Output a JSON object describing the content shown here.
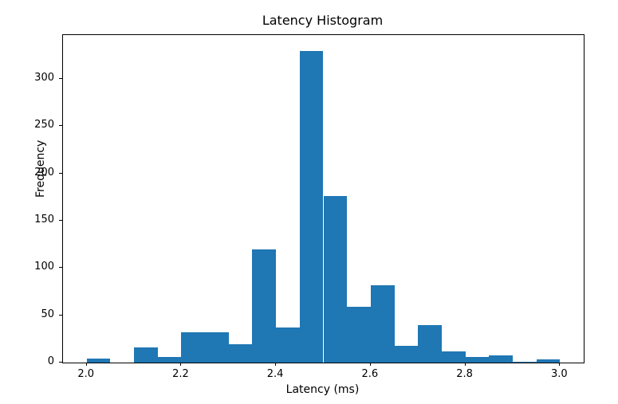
{
  "figure": {
    "background_color": "#ffffff"
  },
  "chart_data": {
    "type": "bar",
    "subtype": "histogram",
    "title": "Latency Histogram",
    "xlabel": "Latency (ms)",
    "ylabel": "Frequency",
    "bar_color": "#1f77b4",
    "text_color": "#000000",
    "bin_start": 2.0,
    "bin_width": 0.05,
    "bin_left_edges": [
      2.0,
      2.05,
      2.1,
      2.15,
      2.2,
      2.25,
      2.3,
      2.35,
      2.4,
      2.45,
      2.5,
      2.55,
      2.6,
      2.65,
      2.7,
      2.75,
      2.8,
      2.85,
      2.9,
      2.95
    ],
    "values": [
      4,
      0,
      16,
      6,
      32,
      32,
      19,
      120,
      37,
      330,
      176,
      59,
      82,
      18,
      40,
      12,
      6,
      8,
      1,
      3
    ],
    "xlim": [
      1.95,
      3.05
    ],
    "ylim": [
      0,
      346.5
    ],
    "x_tick_values": [
      2.0,
      2.2,
      2.4,
      2.6,
      2.8,
      3.0
    ],
    "x_tick_labels": [
      "2.0",
      "2.2",
      "2.4",
      "2.6",
      "2.8",
      "3.0"
    ],
    "y_tick_values": [
      0,
      50,
      100,
      150,
      200,
      250,
      300
    ],
    "y_tick_labels": [
      "0",
      "50",
      "100",
      "150",
      "200",
      "250",
      "300"
    ],
    "grid": false,
    "legend": "none"
  }
}
